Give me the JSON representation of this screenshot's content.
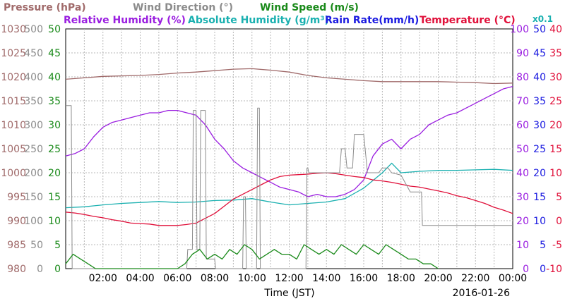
{
  "chart_data": {
    "type": "line",
    "date": "2016-01-26",
    "xlabel": "Time (JST)",
    "x_ticks": [
      "02:00",
      "04:00",
      "06:00",
      "08:00",
      "10:00",
      "12:00",
      "14:00",
      "16:00",
      "18:00",
      "20:00",
      "22:00",
      "00:00"
    ],
    "xlim": [
      0,
      24
    ],
    "grid": true,
    "axes": [
      {
        "id": "pressure",
        "label": "Pressure (hPa)",
        "color": "#a06a6a",
        "side": "left",
        "lim": [
          980,
          1030
        ],
        "ticks": [
          980,
          985,
          990,
          995,
          1000,
          1005,
          1010,
          1015,
          1020,
          1025,
          1030
        ]
      },
      {
        "id": "wind_dir",
        "label": "Wind Direction (°)",
        "color": "#8c8c8c",
        "side": "left",
        "lim": [
          0,
          500
        ],
        "ticks": [
          0,
          50,
          100,
          150,
          200,
          250,
          300,
          350,
          400,
          450,
          500
        ]
      },
      {
        "id": "wind_speed",
        "label": "Wind Speed (m/s)",
        "color": "#1a8a1a",
        "side": "left",
        "lim": [
          0,
          50
        ],
        "ticks": [
          0,
          5,
          10,
          15,
          20,
          25,
          30,
          35,
          40,
          45,
          50
        ]
      },
      {
        "id": "humidity",
        "label": "Relative Humidity (%)",
        "color": "#9a1ee0",
        "side": "right",
        "lim": [
          0,
          100
        ],
        "ticks": [
          0,
          10,
          20,
          30,
          40,
          50,
          60,
          70,
          80,
          90,
          100
        ]
      },
      {
        "id": "abs_hum",
        "label": "Absolute Humidity (g/m³)",
        "color": "#1ab0b0",
        "side": "right",
        "lim": [
          0,
          50
        ],
        "ticks": [
          0,
          5,
          10,
          15,
          20,
          25,
          30,
          35,
          40,
          45,
          50
        ],
        "multiplier": "x0.1"
      },
      {
        "id": "rain",
        "label": "Rain Rate(mm/h)",
        "color": "#1a1ae0",
        "side": "right",
        "lim": [
          0,
          50
        ],
        "ticks": [
          0,
          5,
          10,
          15,
          20,
          25,
          30,
          35,
          40,
          45,
          50
        ]
      },
      {
        "id": "temp",
        "label": "Temperature (°C)",
        "color": "#e0103a",
        "side": "right",
        "lim": [
          -10,
          40
        ],
        "ticks": [
          -10,
          -5,
          0,
          5,
          10,
          15,
          20,
          25,
          30,
          35,
          40
        ]
      }
    ],
    "multiplier_label": "x0.1",
    "series": [
      {
        "name": "Pressure (hPa)",
        "axis": "pressure",
        "color": "#a06a6a",
        "x": [
          0,
          1,
          2,
          3,
          4,
          5,
          6,
          7,
          8,
          9,
          10,
          11,
          12,
          13,
          14,
          15,
          16,
          17,
          18,
          19,
          20,
          21,
          22,
          23,
          24
        ],
        "y": [
          1019.5,
          1019.8,
          1020.1,
          1020.2,
          1020.3,
          1020.5,
          1020.8,
          1021.0,
          1021.3,
          1021.6,
          1021.7,
          1021.4,
          1021.0,
          1020.3,
          1019.8,
          1019.5,
          1019.2,
          1019.0,
          1019.0,
          1019.0,
          1019.0,
          1018.9,
          1018.8,
          1018.6,
          1018.7
        ]
      },
      {
        "name": "Relative Humidity (%)",
        "axis": "humidity",
        "color": "#9a1ee0",
        "x": [
          0,
          0.5,
          1,
          1.5,
          2,
          2.5,
          3,
          3.5,
          4,
          4.5,
          5,
          5.5,
          6,
          6.5,
          7,
          7.5,
          8,
          8.5,
          9,
          9.5,
          10,
          10.5,
          11,
          11.5,
          12,
          12.5,
          13,
          13.5,
          14,
          14.5,
          15,
          15.5,
          16,
          16.5,
          17,
          17.5,
          18,
          18.5,
          19,
          19.5,
          20,
          20.5,
          21,
          21.5,
          22,
          22.5,
          23,
          23.5,
          24
        ],
        "y": [
          47,
          48,
          50,
          55,
          59,
          61,
          62,
          63,
          64,
          65,
          65,
          66,
          66,
          65,
          64,
          60,
          54,
          50,
          45,
          42,
          40,
          38,
          36,
          34,
          33,
          32,
          30,
          31,
          30,
          30,
          31,
          33,
          37,
          47,
          52,
          54,
          50,
          54,
          56,
          60,
          62,
          64,
          65,
          67,
          69,
          71,
          73,
          75,
          76
        ]
      },
      {
        "name": "Absolute Humidity (g/m³)",
        "axis": "abs_hum",
        "color": "#1ab0b0",
        "x": [
          0,
          1,
          2,
          3,
          4,
          5,
          6,
          7,
          8,
          9,
          10,
          11,
          12,
          13,
          14,
          15,
          16,
          17,
          17.5,
          18,
          19,
          20,
          21,
          22,
          23,
          24
        ],
        "y": [
          12.7,
          12.9,
          13.3,
          13.6,
          13.8,
          14.0,
          13.8,
          13.9,
          14.2,
          14.3,
          14.6,
          13.9,
          13.3,
          13.6,
          13.9,
          14.6,
          16.8,
          20.0,
          22.0,
          20.0,
          20.3,
          20.5,
          20.5,
          20.6,
          20.7,
          20.5
        ]
      },
      {
        "name": "Temperature (°C)",
        "axis": "temp",
        "color": "#e0103a",
        "x": [
          0,
          0.5,
          1,
          1.5,
          2,
          2.5,
          3,
          3.5,
          4,
          4.5,
          5,
          5.5,
          6,
          6.5,
          7,
          7.5,
          8,
          8.5,
          9,
          9.5,
          10,
          10.5,
          11,
          11.5,
          12,
          12.5,
          13,
          13.5,
          14,
          14.5,
          15,
          15.5,
          16,
          16.5,
          17,
          17.5,
          18,
          18.5,
          19,
          19.5,
          20,
          20.5,
          21,
          21.5,
          22,
          22.5,
          23,
          23.5,
          24
        ],
        "y": [
          1.8,
          1.6,
          1.3,
          0.9,
          0.6,
          0.2,
          -0.1,
          -0.5,
          -0.6,
          -0.7,
          -1.0,
          -1.0,
          -1.0,
          -0.8,
          -0.5,
          0.5,
          1.5,
          3.0,
          4.5,
          5.5,
          6.5,
          7.5,
          8.5,
          9.2,
          9.5,
          9.6,
          9.7,
          9.9,
          10.0,
          9.8,
          9.5,
          9.2,
          9.0,
          8.5,
          8.3,
          8.0,
          7.6,
          7.2,
          7.0,
          6.6,
          6.2,
          5.8,
          5.2,
          4.8,
          4.2,
          3.6,
          2.8,
          2.2,
          1.5
        ]
      },
      {
        "name": "Wind Direction (°)",
        "axis": "wind_dir",
        "color": "#8c8c8c",
        "x": [
          0,
          0.3,
          0.35,
          1.0,
          1.05,
          6.5,
          6.55,
          6.8,
          6.85,
          7.0,
          7.05,
          7.2,
          7.25,
          7.5,
          7.55,
          8.0,
          8.05,
          9.5,
          9.55,
          9.65,
          9.7,
          10.25,
          10.3,
          10.4,
          10.45,
          12.9,
          12.95,
          13.0,
          13.05,
          14.7,
          14.8,
          15.0,
          15.1,
          15.4,
          15.5,
          16.0,
          16.2,
          16.8,
          17.0,
          17.3,
          17.5,
          18.0,
          18.5,
          19.0,
          19.1,
          19.15,
          24
        ],
        "y": [
          340,
          340,
          0,
          0,
          0,
          0,
          40,
          40,
          330,
          330,
          40,
          40,
          330,
          330,
          20,
          20,
          0,
          0,
          150,
          150,
          0,
          0,
          335,
          335,
          0,
          0,
          210,
          210,
          200,
          200,
          250,
          250,
          210,
          210,
          280,
          280,
          200,
          200,
          210,
          210,
          200,
          195,
          160,
          160,
          160,
          90,
          90
        ]
      },
      {
        "name": "Wind Speed (m/s)",
        "axis": "wind_speed",
        "color": "#1a8a1a",
        "x": [
          0,
          0.4,
          0.8,
          1.2,
          1.6,
          2,
          2.4,
          2.8,
          3.2,
          3.6,
          4,
          4.4,
          4.8,
          5.2,
          5.6,
          6,
          6.4,
          6.8,
          7.2,
          7.6,
          8,
          8.4,
          8.8,
          9.2,
          9.6,
          10,
          10.4,
          10.8,
          11.2,
          11.6,
          12,
          12.4,
          12.8,
          13.2,
          13.6,
          14,
          14.4,
          14.8,
          15.2,
          15.6,
          16,
          16.4,
          16.8,
          17.2,
          17.6,
          18,
          18.4,
          18.8,
          19.2,
          19.6,
          20
        ],
        "y": [
          1,
          3,
          2,
          1,
          0,
          0,
          0,
          0,
          0,
          0,
          0,
          0,
          0,
          0,
          0,
          0,
          1,
          3,
          4,
          2,
          3,
          2,
          4,
          3,
          5,
          4,
          2,
          3,
          4,
          3,
          3,
          2,
          5,
          4,
          3,
          4,
          3,
          5,
          4,
          3,
          5,
          4,
          3,
          5,
          4,
          3,
          2,
          2,
          1,
          1,
          0
        ]
      }
    ]
  }
}
